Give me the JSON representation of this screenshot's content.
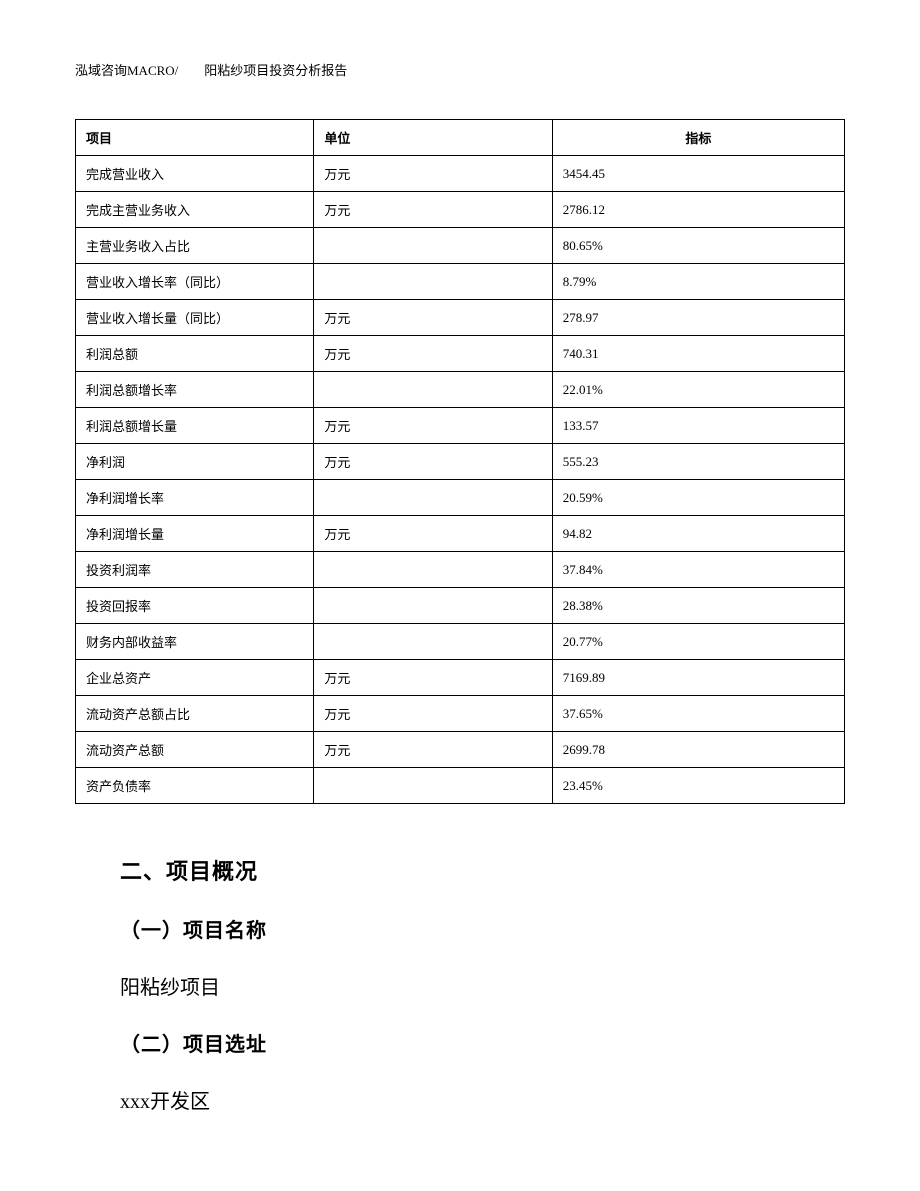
{
  "header": {
    "text": "泓域咨询MACRO/　　阳粘纱项目投资分析报告"
  },
  "table": {
    "type": "table",
    "background_color": "#ffffff",
    "border_color": "#000000",
    "font_size": 13,
    "columns": [
      {
        "label": "项目",
        "align": "left"
      },
      {
        "label": "单位",
        "align": "left"
      },
      {
        "label": "指标",
        "align": "center"
      }
    ],
    "rows": [
      [
        "完成营业收入",
        "万元",
        "3454.45"
      ],
      [
        "完成主营业务收入",
        "万元",
        "2786.12"
      ],
      [
        "主营业务收入占比",
        "",
        "80.65%"
      ],
      [
        "营业收入增长率（同比）",
        "",
        "8.79%"
      ],
      [
        "营业收入增长量（同比）",
        "万元",
        "278.97"
      ],
      [
        "利润总额",
        "万元",
        "740.31"
      ],
      [
        "利润总额增长率",
        "",
        "22.01%"
      ],
      [
        "利润总额增长量",
        "万元",
        "133.57"
      ],
      [
        "净利润",
        "万元",
        "555.23"
      ],
      [
        "净利润增长率",
        "",
        "20.59%"
      ],
      [
        "净利润增长量",
        "万元",
        "94.82"
      ],
      [
        "投资利润率",
        "",
        "37.84%"
      ],
      [
        "投资回报率",
        "",
        "28.38%"
      ],
      [
        "财务内部收益率",
        "",
        "20.77%"
      ],
      [
        "企业总资产",
        "万元",
        "7169.89"
      ],
      [
        "流动资产总额占比",
        "万元",
        "37.65%"
      ],
      [
        "流动资产总额",
        "万元",
        "2699.78"
      ],
      [
        "资产负债率",
        "",
        "23.45%"
      ]
    ]
  },
  "content": {
    "section_title": "二、项目概况",
    "sub1_title": "（一）项目名称",
    "sub1_text": "阳粘纱项目",
    "sub2_title": "（二）项目选址",
    "sub2_text": "xxx开发区"
  }
}
